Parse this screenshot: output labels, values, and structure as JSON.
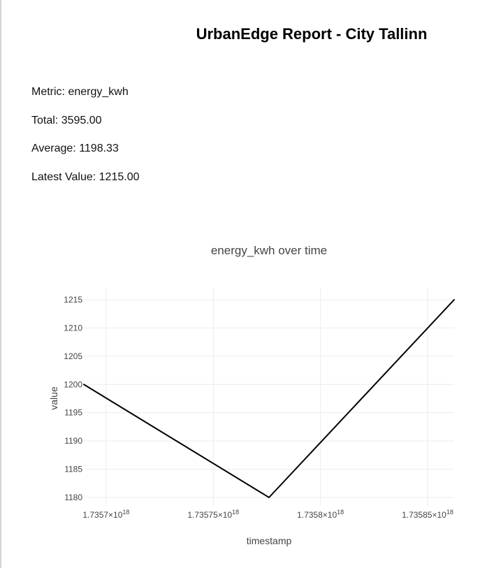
{
  "report": {
    "title": "UrbanEdge Report - City Tallinn",
    "metric_line": "Metric: energy_kwh",
    "total_line": "Total: 3595.00",
    "average_line": "Average: 1198.33",
    "latest_line": "Latest Value: 1215.00"
  },
  "chart_data": {
    "type": "line",
    "title": "energy_kwh over time",
    "xlabel": "timestamp",
    "ylabel": "value",
    "x": [
      1735689600000000000,
      1735776000000000000,
      1735862400000000000
    ],
    "series": [
      {
        "values": [
          1200,
          1180,
          1215
        ],
        "color": "#000000"
      }
    ],
    "xlim": [
      1735689600000000000,
      1735862400000000000
    ],
    "ylim": [
      1180,
      1215
    ],
    "y_ticks": [
      1180,
      1185,
      1190,
      1195,
      1200,
      1205,
      1210,
      1215
    ],
    "x_ticks": [
      {
        "value": 1735700000000000000,
        "mantissa": "1.7357",
        "exponent": "18"
      },
      {
        "value": 1735750000000000000,
        "mantissa": "1.73575",
        "exponent": "18"
      },
      {
        "value": 1735800000000000000,
        "mantissa": "1.7358",
        "exponent": "18"
      },
      {
        "value": 1735850000000000000,
        "mantissa": "1.73585",
        "exponent": "18"
      }
    ],
    "grid": true,
    "legend": "none"
  }
}
